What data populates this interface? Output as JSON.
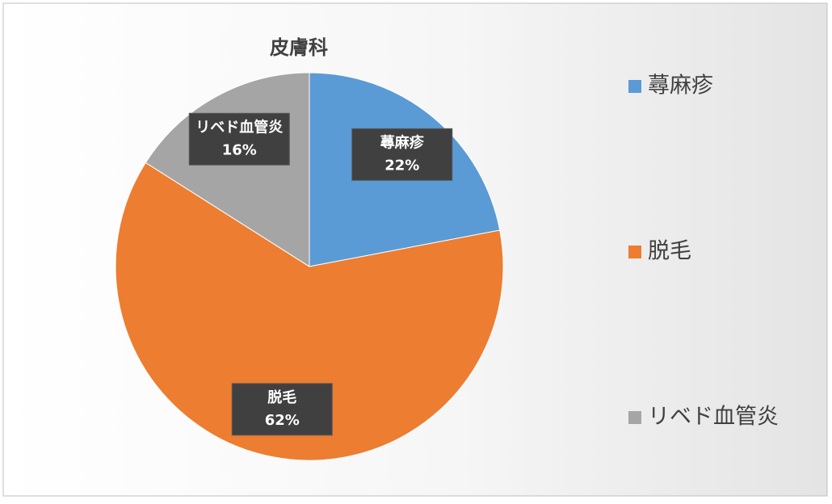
{
  "chart_data": {
    "type": "pie",
    "title": "皮膚科",
    "categories": [
      "蕁麻疹",
      "脱毛",
      "リベド血管炎"
    ],
    "values": [
      22,
      62,
      16
    ],
    "value_labels": [
      "22%",
      "62%",
      "16%"
    ],
    "colors": [
      "#5b9bd5",
      "#ed7d31",
      "#a5a5a5"
    ],
    "legend": "right"
  }
}
